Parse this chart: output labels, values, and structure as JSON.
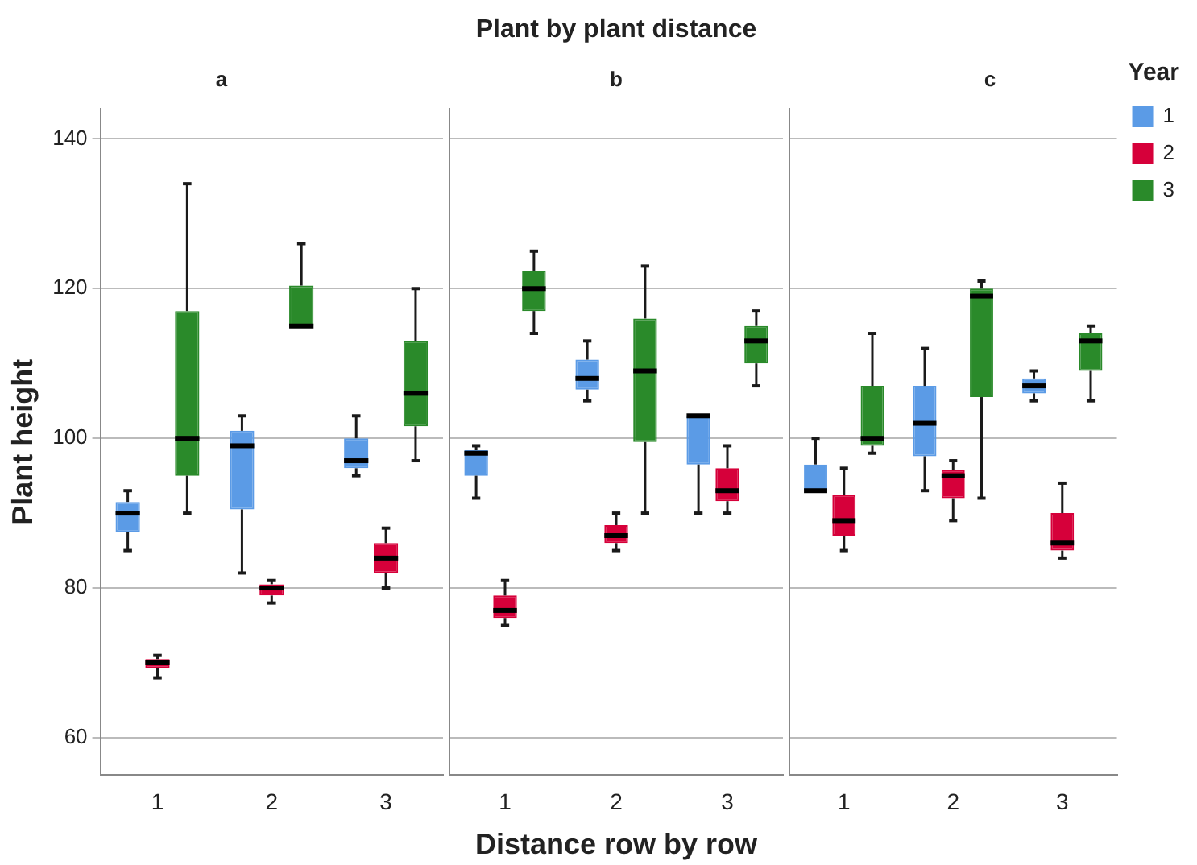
{
  "chart_data": [
    {
      "type": "box",
      "title": "a",
      "ylabel": "Plant height",
      "categories": [
        "1",
        "2",
        "3"
      ],
      "ylim": [
        55,
        144
      ],
      "yticks": [
        60,
        80,
        100,
        120,
        140
      ],
      "grid": "y",
      "series": [
        {
          "color": "#5b9be6",
          "boxes": [
            {
              "low": 85,
              "q1": 87.5,
              "median": 90,
              "q3": 91.5,
              "high": 93
            },
            {
              "low": 82,
              "q1": 90.5,
              "median": 99,
              "q3": 101,
              "high": 103
            },
            {
              "low": 95,
              "q1": 96,
              "median": 97,
              "q3": 100,
              "high": 103
            }
          ]
        },
        {
          "color": "#d6003a",
          "boxes": [
            {
              "low": 68,
              "q1": 69.3,
              "median": 70,
              "q3": 70.5,
              "high": 71
            },
            {
              "low": 78,
              "q1": 79,
              "median": 80,
              "q3": 80.5,
              "high": 81
            },
            {
              "low": 80,
              "q1": 82,
              "median": 84,
              "q3": 86,
              "high": 88
            }
          ]
        },
        {
          "color": "#2a8a2a",
          "boxes": [
            {
              "low": 90,
              "q1": 95,
              "median": 100,
              "q3": 117,
              "high": 134
            },
            {
              "low": 115,
              "q1": 115,
              "median": 115,
              "q3": 120.4,
              "high": 126
            },
            {
              "low": 97,
              "q1": 101.6,
              "median": 106,
              "q3": 113,
              "high": 120
            }
          ]
        }
      ]
    },
    {
      "type": "box",
      "title": "b",
      "xlabel": "Distance row by row",
      "annotations": [
        "Plant by plant distance"
      ],
      "categories": [
        "1",
        "2",
        "3"
      ],
      "ylim": [
        55,
        144
      ],
      "yticks": [
        60,
        80,
        100,
        120,
        140
      ],
      "grid": "y",
      "tick_labels": "x",
      "series": [
        {
          "color": "#5b9be6",
          "boxes": [
            {
              "low": 92,
              "q1": 95,
              "median": 98,
              "q3": 98.4,
              "high": 99
            },
            {
              "low": 105,
              "q1": 106.5,
              "median": 108,
              "q3": 110.5,
              "high": 113
            },
            {
              "low": 90,
              "q1": 96.5,
              "median": 103,
              "q3": 103,
              "high": 103
            }
          ]
        },
        {
          "color": "#d6003a",
          "boxes": [
            {
              "low": 75,
              "q1": 76,
              "median": 77,
              "q3": 79,
              "high": 81
            },
            {
              "low": 85,
              "q1": 86,
              "median": 87,
              "q3": 88.4,
              "high": 90
            },
            {
              "low": 90,
              "q1": 91.6,
              "median": 93,
              "q3": 96,
              "high": 99
            }
          ]
        },
        {
          "color": "#2a8a2a",
          "boxes": [
            {
              "low": 114,
              "q1": 117,
              "median": 120,
              "q3": 122.4,
              "high": 125
            },
            {
              "low": 90,
              "q1": 99.5,
              "median": 109,
              "q3": 116,
              "high": 123
            },
            {
              "low": 107,
              "q1": 110,
              "median": 113,
              "q3": 115,
              "high": 117
            }
          ]
        }
      ]
    },
    {
      "type": "box",
      "title": "c",
      "legend": "right",
      "legend_title": "Year",
      "categories": [
        "1",
        "2",
        "3"
      ],
      "ylim": [
        55,
        144
      ],
      "yticks": [
        60,
        80,
        100,
        120,
        140
      ],
      "grid": "y",
      "tick_labels": "x",
      "series": [
        {
          "name": "1",
          "color": "#5b9be6",
          "boxes": [
            {
              "low": 93,
              "q1": 93,
              "median": 93,
              "q3": 96.5,
              "high": 100
            },
            {
              "low": 93,
              "q1": 97.6,
              "median": 102,
              "q3": 107,
              "high": 112
            },
            {
              "low": 105,
              "q1": 106,
              "median": 107,
              "q3": 108,
              "high": 109
            }
          ]
        },
        {
          "name": "2",
          "color": "#d6003a",
          "boxes": [
            {
              "low": 85,
              "q1": 87,
              "median": 89,
              "q3": 92.4,
              "high": 96
            },
            {
              "low": 89,
              "q1": 92,
              "median": 95,
              "q3": 95.8,
              "high": 97
            },
            {
              "low": 84,
              "q1": 85,
              "median": 86,
              "q3": 90,
              "high": 94
            }
          ]
        },
        {
          "name": "3",
          "color": "#2a8a2a",
          "boxes": [
            {
              "low": 98,
              "q1": 99,
              "median": 100,
              "q3": 107,
              "high": 114
            },
            {
              "low": 92,
              "q1": 105.5,
              "median": 119,
              "q3": 120,
              "high": 121
            },
            {
              "low": 105,
              "q1": 109,
              "median": 113,
              "q3": 114,
              "high": 115
            }
          ]
        }
      ]
    }
  ]
}
